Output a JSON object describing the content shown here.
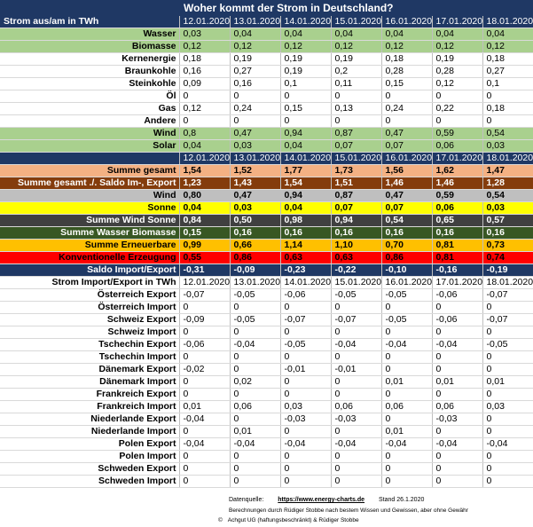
{
  "title": "Woher kommt der Strom in Deutschland?",
  "header_label": "Strom aus/am in TWh",
  "dates": [
    "12.01.2020",
    "13.01.2020",
    "14.01.2020",
    "15.01.2020",
    "16.01.2020",
    "17.01.2020",
    "18.01.2020"
  ],
  "sources": [
    {
      "label": "Wasser",
      "style": "green",
      "values": [
        "0,03",
        "0,04",
        "0,04",
        "0,04",
        "0,04",
        "0,04",
        "0,04"
      ]
    },
    {
      "label": "Biomasse",
      "style": "green",
      "values": [
        "0,12",
        "0,12",
        "0,12",
        "0,12",
        "0,12",
        "0,12",
        "0,12"
      ]
    },
    {
      "label": "Kernenergie",
      "style": "white",
      "values": [
        "0,18",
        "0,19",
        "0,19",
        "0,19",
        "0,18",
        "0,19",
        "0,18"
      ]
    },
    {
      "label": "Braunkohle",
      "style": "white",
      "values": [
        "0,16",
        "0,27",
        "0,19",
        "0,2",
        "0,28",
        "0,28",
        "0,27"
      ]
    },
    {
      "label": "Steinkohle",
      "style": "white",
      "values": [
        "0,09",
        "0,16",
        "0,1",
        "0,11",
        "0,15",
        "0,12",
        "0,1"
      ]
    },
    {
      "label": "Öl",
      "style": "white",
      "values": [
        "0",
        "0",
        "0",
        "0",
        "0",
        "0",
        "0"
      ]
    },
    {
      "label": "Gas",
      "style": "white",
      "values": [
        "0,12",
        "0,24",
        "0,15",
        "0,13",
        "0,24",
        "0,22",
        "0,18"
      ]
    },
    {
      "label": "Andere",
      "style": "white",
      "values": [
        "0",
        "0",
        "0",
        "0",
        "0",
        "0",
        "0"
      ]
    },
    {
      "label": "Wind",
      "style": "green",
      "values": [
        "0,8",
        "0,47",
        "0,94",
        "0,87",
        "0,47",
        "0,59",
        "0,54"
      ]
    },
    {
      "label": "Solar",
      "style": "green",
      "values": [
        "0,04",
        "0,03",
        "0,04",
        "0,07",
        "0,07",
        "0,06",
        "0,03"
      ]
    }
  ],
  "summary": [
    {
      "label": "Summe gesamt",
      "style": "sumges",
      "values": [
        "1,54",
        "1,52",
        "1,77",
        "1,73",
        "1,56",
        "1,62",
        "1,47"
      ]
    },
    {
      "label": "Summe gesamt ./. Saldo Im-, Export",
      "style": "saldo1",
      "values": [
        "1,23",
        "1,43",
        "1,54",
        "1,51",
        "1,46",
        "1,46",
        "1,28"
      ]
    },
    {
      "label": "Wind",
      "style": "wind",
      "values": [
        "0,80",
        "0,47",
        "0,94",
        "0,87",
        "0,47",
        "0,59",
        "0,54"
      ]
    },
    {
      "label": "Sonne",
      "style": "sonne",
      "values": [
        "0,04",
        "0,03",
        "0,04",
        "0,07",
        "0,07",
        "0,06",
        "0,03"
      ]
    },
    {
      "label": "Summe Wind Sonne",
      "style": "windsonne",
      "values": [
        "0,84",
        "0,50",
        "0,98",
        "0,94",
        "0,54",
        "0,65",
        "0,57"
      ]
    },
    {
      "label": "Summe Wasser Biomasse",
      "style": "wasser",
      "values": [
        "0,15",
        "0,16",
        "0,16",
        "0,16",
        "0,16",
        "0,16",
        "0,16"
      ]
    },
    {
      "label": "Summe Erneuerbare",
      "style": "erneu",
      "values": [
        "0,99",
        "0,66",
        "1,14",
        "1,10",
        "0,70",
        "0,81",
        "0,73"
      ]
    },
    {
      "label": "Konventionelle Erzeugung",
      "style": "konv",
      "values": [
        "0,55",
        "0,86",
        "0,63",
        "0,63",
        "0,86",
        "0,81",
        "0,74"
      ]
    },
    {
      "label": "Saldo Import/Export",
      "style": "saldo2",
      "values": [
        "-0,31",
        "-0,09",
        "-0,23",
        "-0,22",
        "-0,10",
        "-0,16",
        "-0,19"
      ]
    }
  ],
  "import_header_label": "Strom Import/Export in TWh",
  "imports": [
    {
      "label": "Österreich Export",
      "values": [
        "-0,07",
        "-0,05",
        "-0,06",
        "-0,05",
        "-0,05",
        "-0,06",
        "-0,07"
      ]
    },
    {
      "label": "Österreich Import",
      "values": [
        "0",
        "0",
        "0",
        "0",
        "0",
        "0",
        "0"
      ]
    },
    {
      "label": "Schweiz Export",
      "values": [
        "-0,09",
        "-0,05",
        "-0,07",
        "-0,07",
        "-0,05",
        "-0,06",
        "-0,07"
      ]
    },
    {
      "label": "Schweiz Import",
      "values": [
        "0",
        "0",
        "0",
        "0",
        "0",
        "0",
        "0"
      ]
    },
    {
      "label": "Tschechin Export",
      "values": [
        "-0,06",
        "-0,04",
        "-0,05",
        "-0,04",
        "-0,04",
        "-0,04",
        "-0,05"
      ]
    },
    {
      "label": "Tschechin Import",
      "values": [
        "0",
        "0",
        "0",
        "0",
        "0",
        "0",
        "0"
      ]
    },
    {
      "label": "Dänemark Export",
      "values": [
        "-0,02",
        "0",
        "-0,01",
        "-0,01",
        "0",
        "0",
        "0"
      ]
    },
    {
      "label": "Dänemark Import",
      "values": [
        "0",
        "0,02",
        "0",
        "0",
        "0,01",
        "0,01",
        "0,01"
      ]
    },
    {
      "label": "Frankreich Export",
      "values": [
        "0",
        "0",
        "0",
        "0",
        "0",
        "0",
        "0"
      ]
    },
    {
      "label": "Frankreich Import",
      "values": [
        "0,01",
        "0,06",
        "0,03",
        "0,06",
        "0,06",
        "0,06",
        "0,03"
      ]
    },
    {
      "label": "Niederlande Export",
      "values": [
        "-0,04",
        "0",
        "-0,03",
        "-0,03",
        "0",
        "-0,03",
        "0"
      ]
    },
    {
      "label": "Niederlande Import",
      "values": [
        "0",
        "0,01",
        "0",
        "0",
        "0,01",
        "0",
        "0"
      ]
    },
    {
      "label": "Polen  Export",
      "values": [
        "-0,04",
        "-0,04",
        "-0,04",
        "-0,04",
        "-0,04",
        "-0,04",
        "-0,04"
      ]
    },
    {
      "label": "Polen Import",
      "values": [
        "0",
        "0",
        "0",
        "0",
        "0",
        "0",
        "0"
      ]
    },
    {
      "label": "Schweden Export",
      "values": [
        "0",
        "0",
        "0",
        "0",
        "0",
        "0",
        "0"
      ]
    },
    {
      "label": "Schweden Import",
      "values": [
        "0",
        "0",
        "0",
        "0",
        "0",
        "0",
        "0"
      ]
    }
  ],
  "footer": {
    "source_label": "Datenquelle:",
    "source_link": "https://www.energy-charts.de",
    "stand": "Stand 26.1.2020",
    "calc": "Berechnungen durch Rüdiger Stobbe nach bestem Wissen und Gewissen, aber ohne Gewähr",
    "copyright": "Achgut UG (haftungsbeschränkt) & Rüdiger Stobbe"
  }
}
